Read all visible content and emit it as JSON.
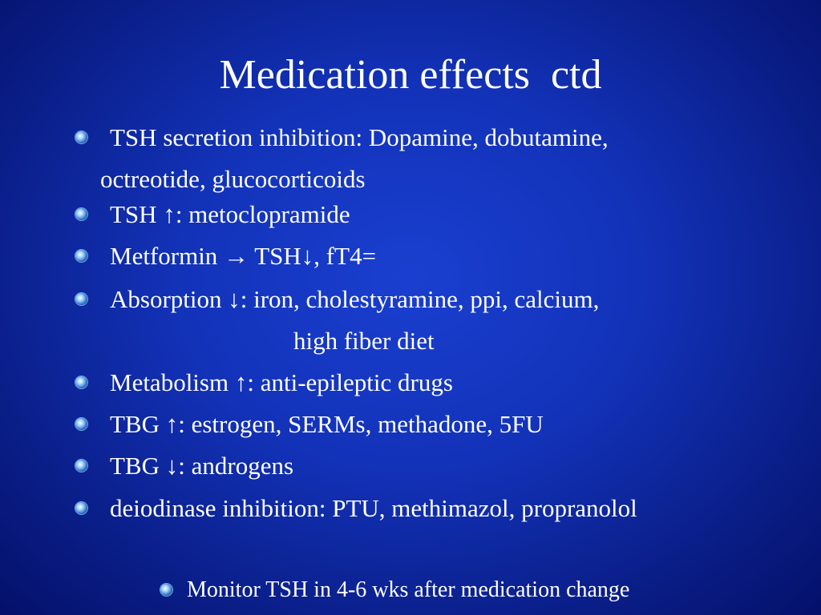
{
  "title": "Medication effects  ctd",
  "items": [
    [
      "TSH secretion inhibition: Dopamine, dobutamine,",
      "octreotide, glucocorticoids"
    ],
    [
      "TSH ↑: metoclopramide"
    ],
    [
      "Metformin → TSH↓, fT4="
    ],
    [
      "Absorption ↓: iron, cholestyramine, ppi, calcium,",
      "high fiber diet"
    ],
    [
      "Metabolism ↑: anti-epileptic drugs"
    ],
    [
      "TBG ↑: estrogen, SERMs, methadone, 5FU"
    ],
    [
      "TBG ↓: androgens"
    ],
    [
      "deiodinase inhibition: PTU, methimazol, propranolol"
    ]
  ],
  "footer": "Monitor TSH in 4-6 wks after medication change"
}
